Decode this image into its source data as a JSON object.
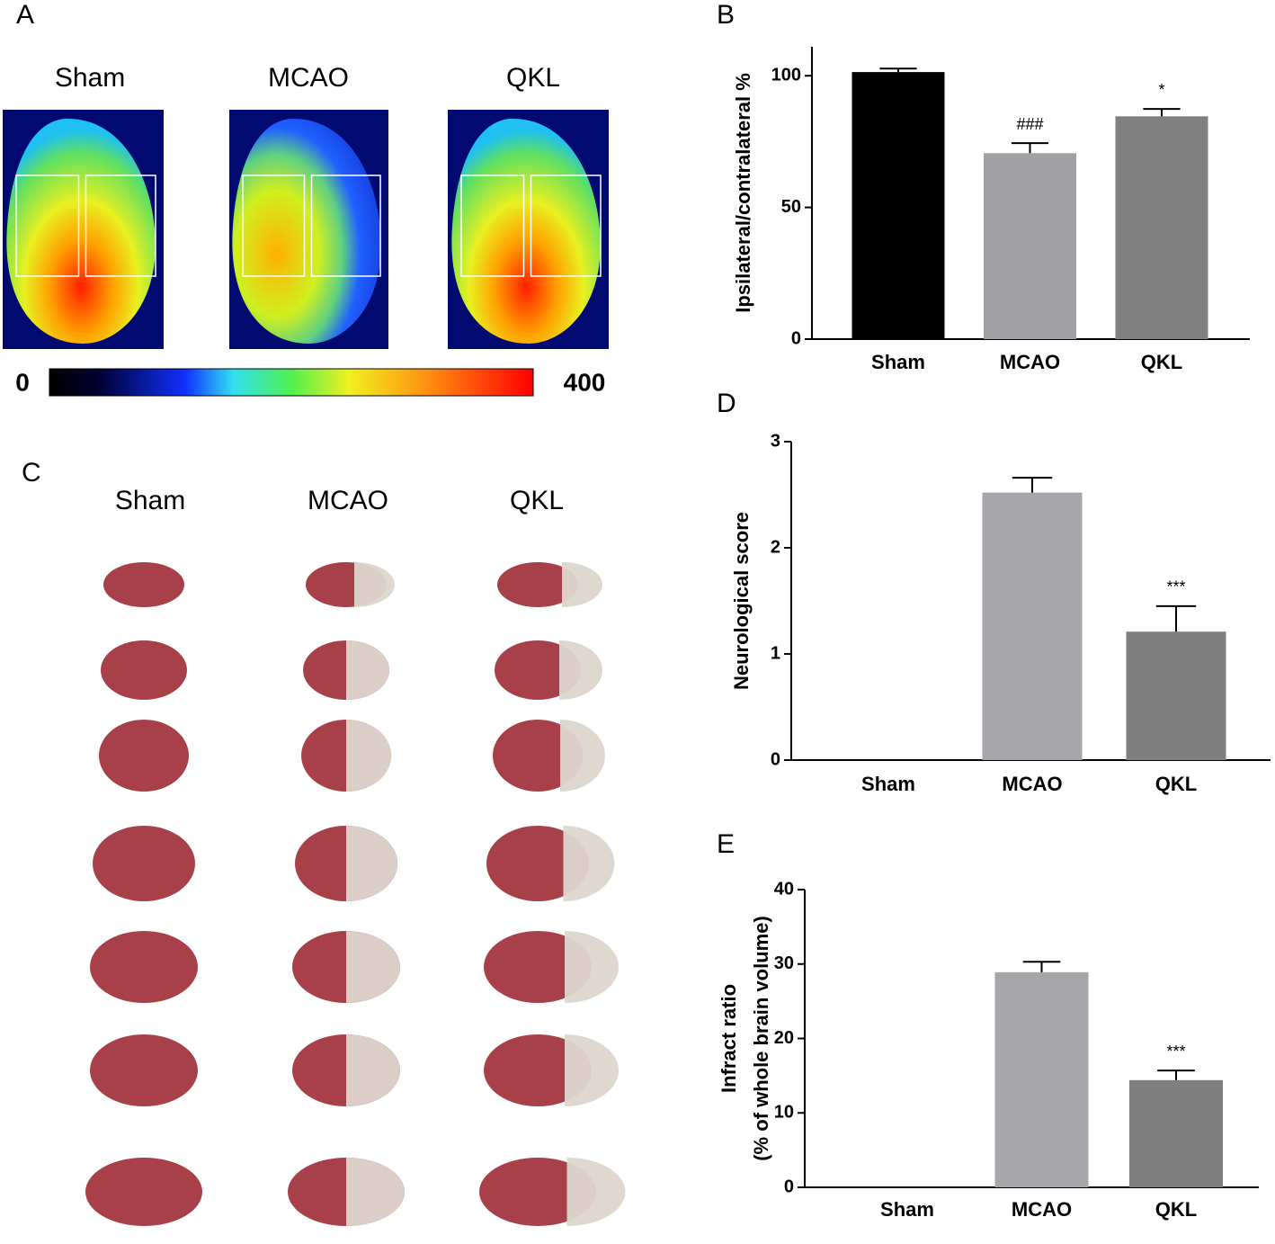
{
  "panels": {
    "A": {
      "label": "A",
      "columns": [
        "Sham",
        "MCAO",
        "QKL"
      ],
      "colorbar": {
        "min": 0,
        "max": 400
      }
    },
    "C": {
      "label": "C",
      "columns": [
        "Sham",
        "MCAO",
        "QKL"
      ]
    }
  },
  "chart_data": [
    {
      "type": "bar",
      "panel": "B",
      "ylabel": "Ipsilateral/contralateral %",
      "categories": [
        "Sham",
        "MCAO",
        "QKL"
      ],
      "values": [
        101.4,
        70.6,
        84.6
      ],
      "errors": [
        1.3,
        3.8,
        2.8
      ],
      "annotations": [
        null,
        "###",
        "*"
      ],
      "colors": [
        "#000000",
        "#a0a0a4",
        "#808080"
      ],
      "ylim": [
        0,
        111
      ],
      "yticks": [
        0,
        50,
        100
      ]
    },
    {
      "type": "bar",
      "panel": "D",
      "ylabel": "Neurological score",
      "categories": [
        "Sham",
        "MCAO",
        "QKL"
      ],
      "values": [
        0,
        2.52,
        1.21
      ],
      "errors": [
        0,
        0.14,
        0.24
      ],
      "annotations": [
        null,
        null,
        "***"
      ],
      "colors": [
        "#000000",
        "#a6a6aa",
        "#7f7f7f"
      ],
      "ylim": [
        0,
        3
      ],
      "yticks": [
        0,
        1,
        2,
        3
      ]
    },
    {
      "type": "bar",
      "panel": "E",
      "ylabel": [
        "Infract ratio",
        "(% of whole brain volume)"
      ],
      "categories": [
        "Sham",
        "MCAO",
        "QKL"
      ],
      "values": [
        0,
        28.9,
        14.4
      ],
      "errors": [
        0,
        1.4,
        1.3
      ],
      "annotations": [
        null,
        null,
        "***"
      ],
      "colors": [
        "#000000",
        "#a6a6aa",
        "#7f7f7f"
      ],
      "ylim": [
        0,
        40
      ],
      "yticks": [
        0,
        10,
        20,
        30,
        40
      ]
    }
  ]
}
